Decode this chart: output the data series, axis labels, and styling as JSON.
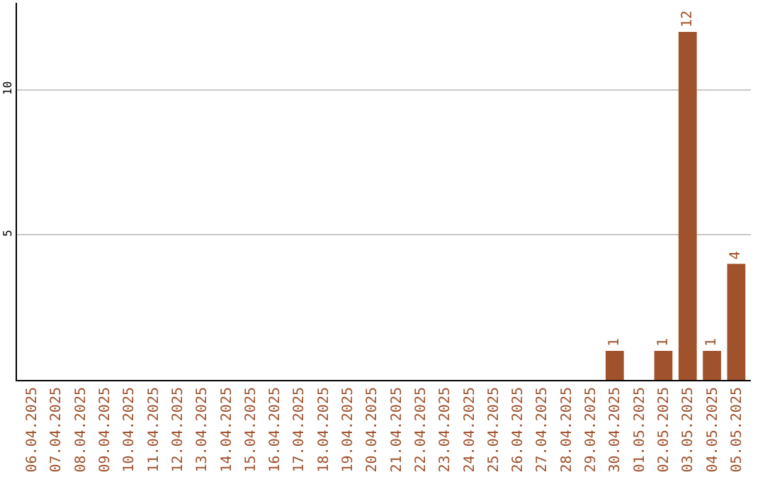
{
  "chart_data": {
    "type": "bar",
    "categories": [
      "06.04.2025",
      "07.04.2025",
      "08.04.2025",
      "09.04.2025",
      "10.04.2025",
      "11.04.2025",
      "12.04.2025",
      "13.04.2025",
      "14.04.2025",
      "15.04.2025",
      "16.04.2025",
      "17.04.2025",
      "18.04.2025",
      "19.04.2025",
      "20.04.2025",
      "21.04.2025",
      "22.04.2025",
      "23.04.2025",
      "24.04.2025",
      "25.04.2025",
      "26.04.2025",
      "27.04.2025",
      "28.04.2025",
      "29.04.2025",
      "30.04.2025",
      "01.05.2025",
      "02.05.2025",
      "03.05.2025",
      "04.05.2025",
      "05.05.2025"
    ],
    "values": [
      0,
      0,
      0,
      0,
      0,
      0,
      0,
      0,
      0,
      0,
      0,
      0,
      0,
      0,
      0,
      0,
      0,
      0,
      0,
      0,
      0,
      0,
      0,
      0,
      1,
      0,
      1,
      12,
      1,
      4
    ],
    "value_labels": [
      null,
      null,
      null,
      null,
      null,
      null,
      null,
      null,
      null,
      null,
      null,
      null,
      null,
      null,
      null,
      null,
      null,
      null,
      null,
      null,
      null,
      null,
      null,
      null,
      "1",
      null,
      "1",
      "12",
      "1",
      "4"
    ],
    "color": "#a0522d",
    "ylim": [
      0,
      13
    ],
    "yticks": [
      5,
      10
    ],
    "grid": "y",
    "legend": false
  }
}
